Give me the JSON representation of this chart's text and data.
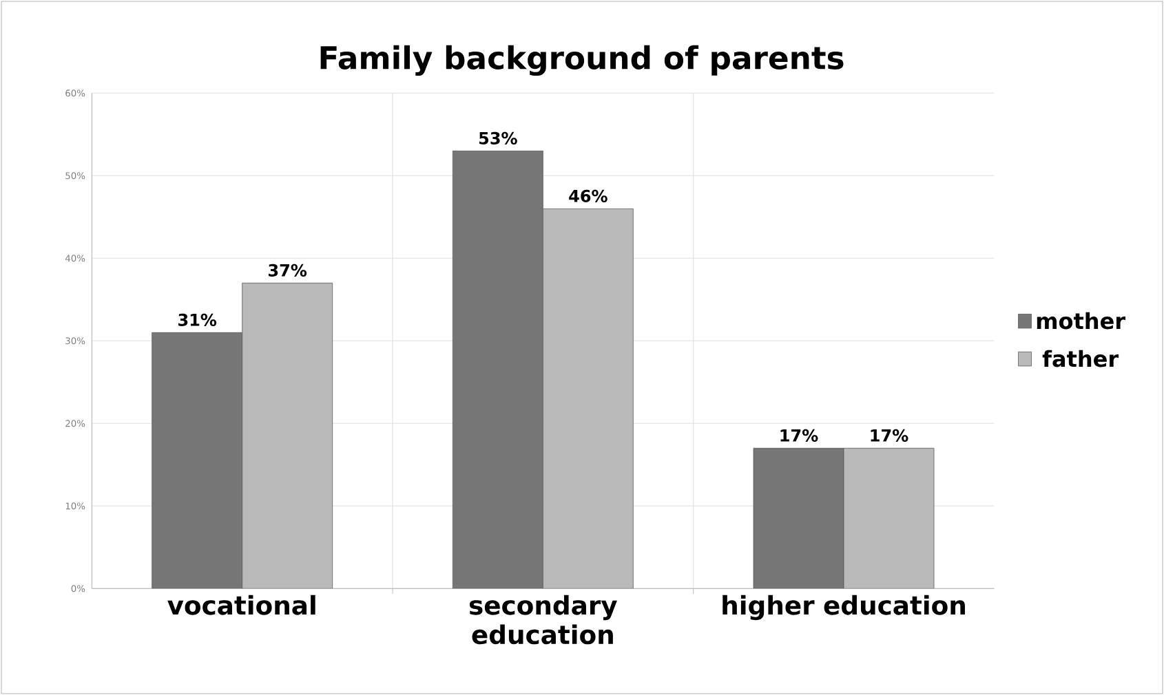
{
  "chart_data": {
    "type": "bar",
    "title": "Family background of parents",
    "categories": [
      "vocational",
      "secondary education",
      "higher education"
    ],
    "series": [
      {
        "name": "mother",
        "color": "#767676",
        "values": [
          31,
          53,
          17
        ],
        "value_labels": [
          "31%",
          "53%",
          "17%"
        ]
      },
      {
        "name": "father",
        "color": "#b9b9b9",
        "values": [
          37,
          46,
          17
        ],
        "value_labels": [
          "37%",
          "46%",
          "17%"
        ]
      }
    ],
    "ylim": [
      0,
      60
    ],
    "yticks": [
      {
        "value": 0,
        "label": "0%"
      },
      {
        "value": 10,
        "label": "10%"
      },
      {
        "value": 20,
        "label": "20%"
      },
      {
        "value": 30,
        "label": "30%"
      },
      {
        "value": 40,
        "label": "40%"
      },
      {
        "value": 50,
        "label": "50%"
      },
      {
        "value": 60,
        "label": "60%"
      }
    ],
    "grid": true,
    "legend": "right"
  }
}
